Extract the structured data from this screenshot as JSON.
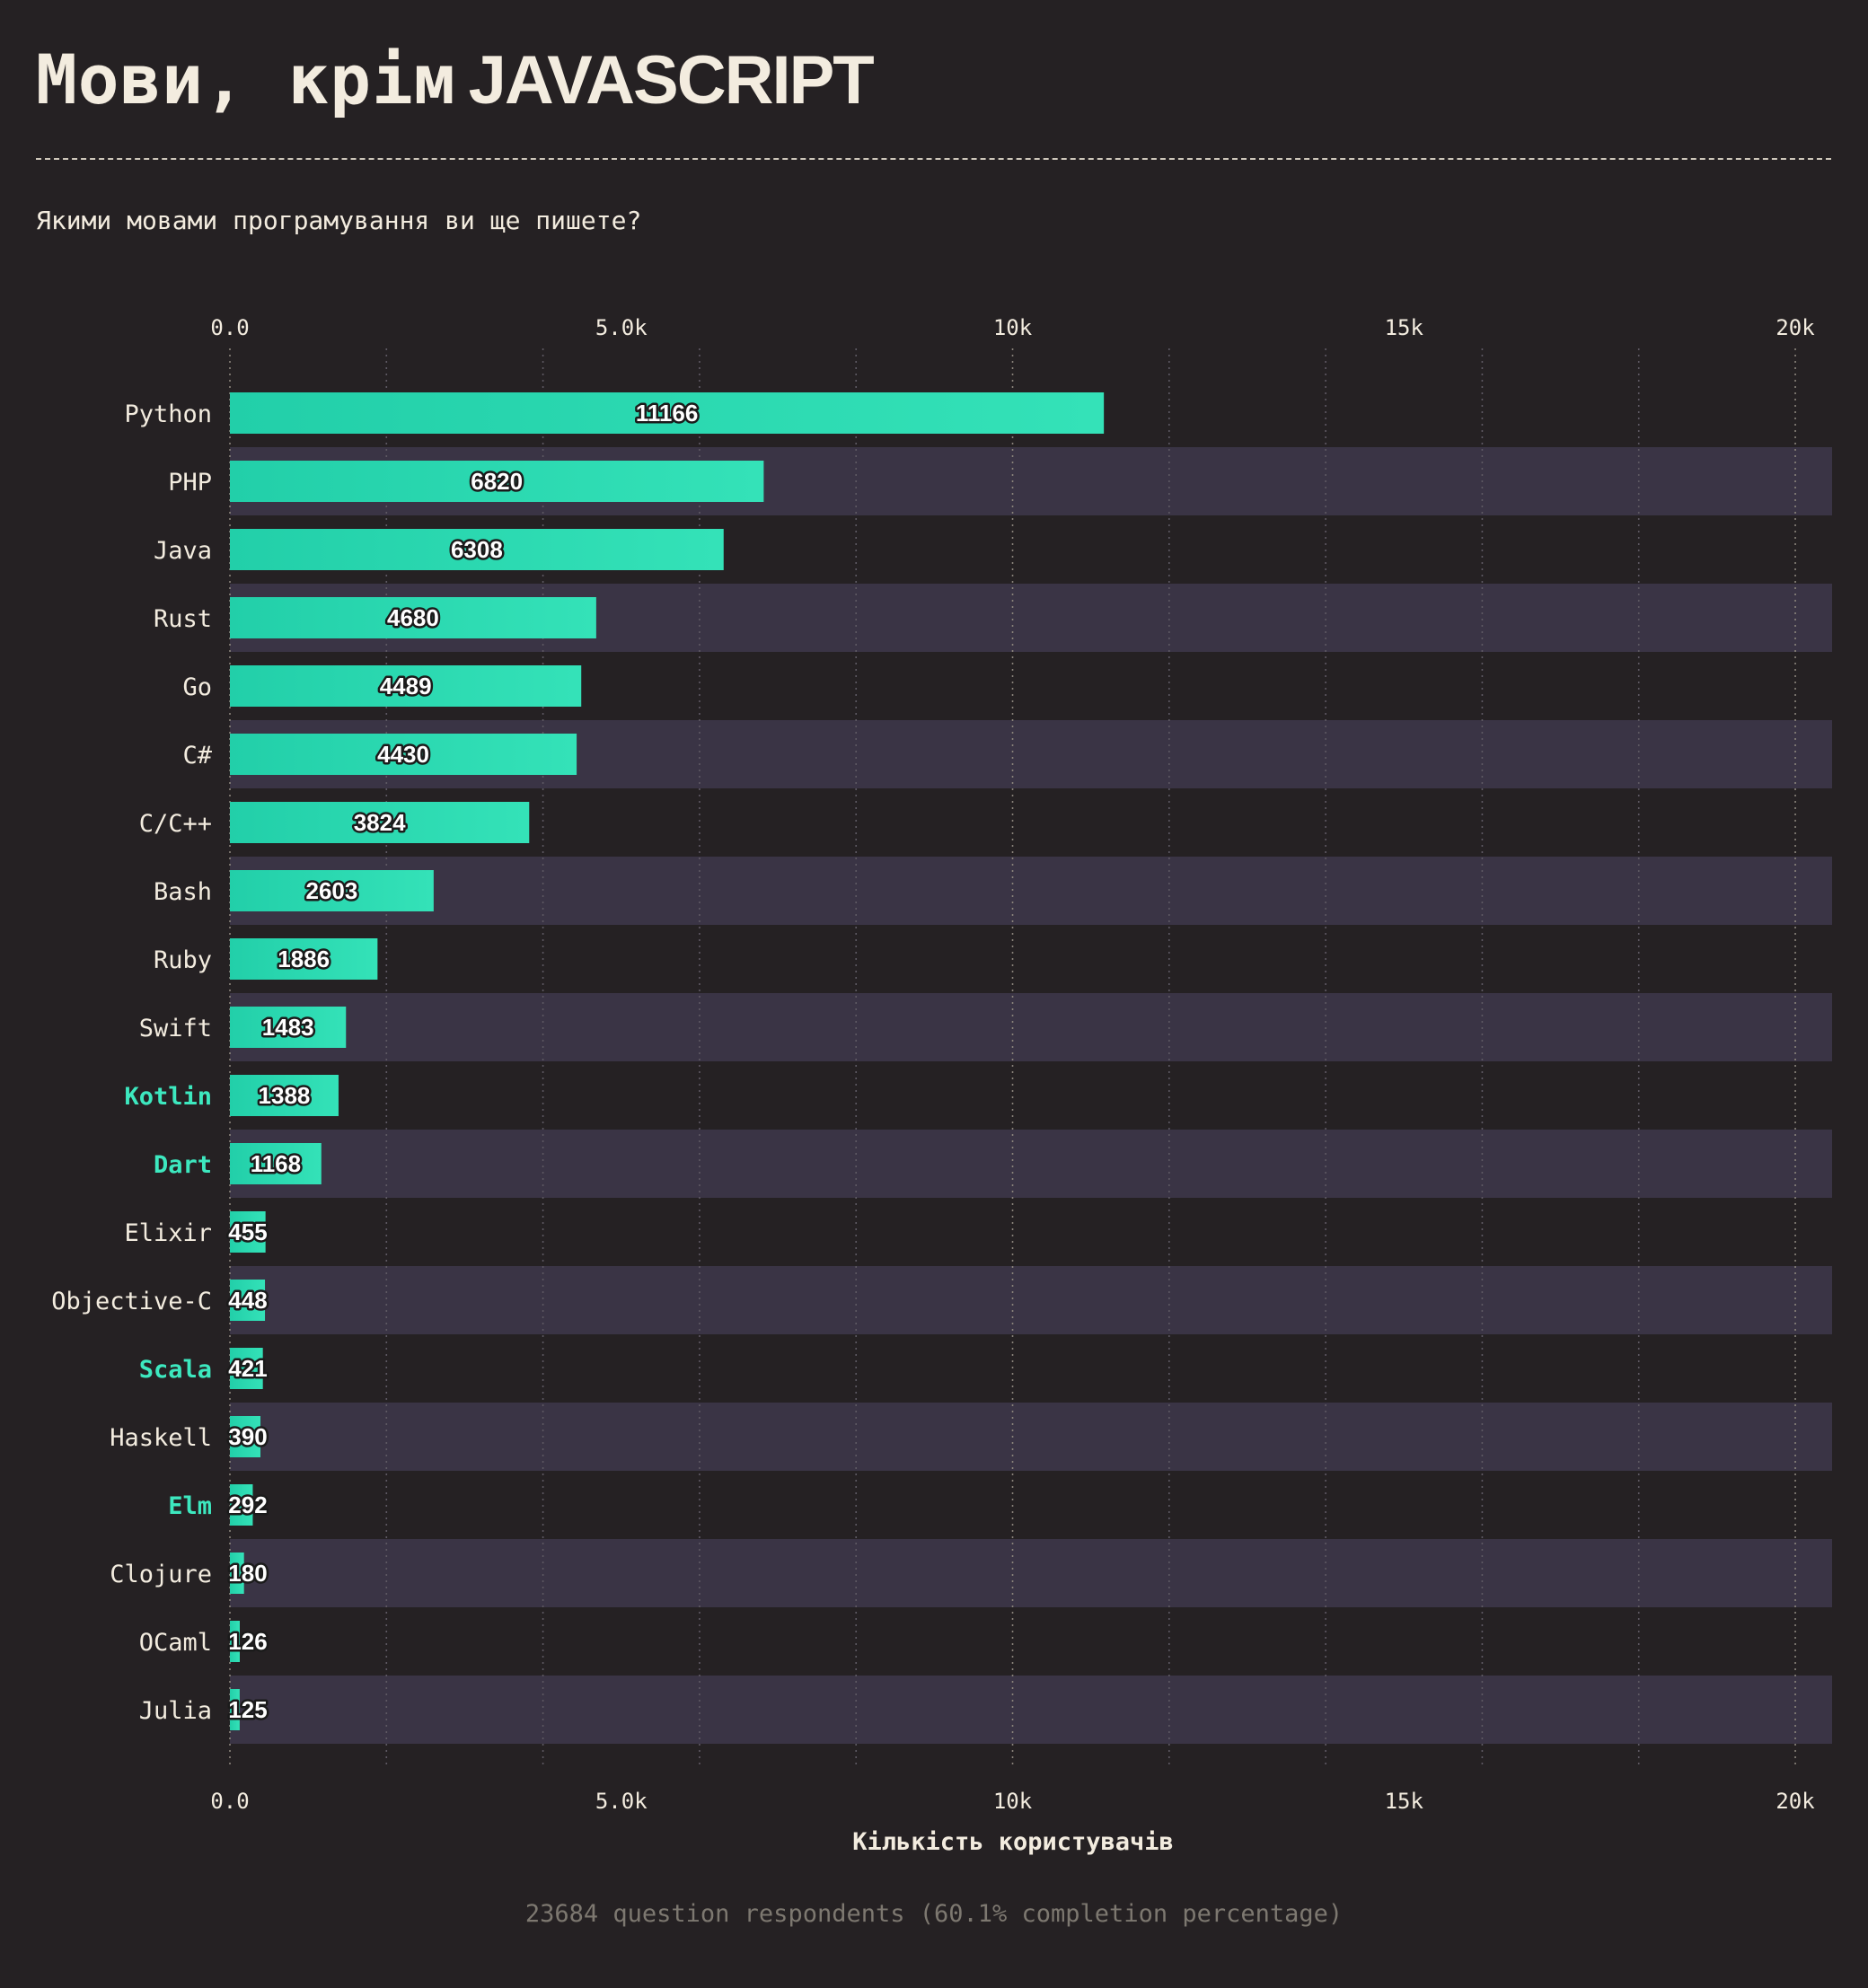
{
  "header": {
    "title_part1": "Мови, крім",
    "title_part2": "JAVASCRIPT",
    "question": "Якими мовами програмування ви ще пишете?"
  },
  "footer": {
    "respondents": "23684 question respondents (60.1% completion percentage)"
  },
  "colors": {
    "background": "#252123",
    "band": "#3a3445",
    "bar": "#2cd9b0",
    "highlight_label": "#3de8bf",
    "text": "#f3ecdf",
    "muted": "#7d7870"
  },
  "chart_data": {
    "type": "bar",
    "orientation": "horizontal",
    "title": "Мови, крім JAVASCRIPT",
    "subtitle": "Якими мовами програмування ви ще пишете?",
    "xlabel": "Кількість користувачів",
    "ylabel": "",
    "xlim": [
      0,
      20470
    ],
    "x_ticks": [
      0,
      5000,
      10000,
      15000,
      20000
    ],
    "x_tick_labels": [
      "0.0",
      "5.0k",
      "10k",
      "15k",
      "20k"
    ],
    "grid": true,
    "categories": [
      "Python",
      "PHP",
      "Java",
      "Rust",
      "Go",
      "C#",
      "C/C++",
      "Bash",
      "Ruby",
      "Swift",
      "Kotlin",
      "Dart",
      "Elixir",
      "Objective-C",
      "Scala",
      "Haskell",
      "Elm",
      "Clojure",
      "OCaml",
      "Julia"
    ],
    "values": [
      11166,
      6820,
      6308,
      4680,
      4489,
      4430,
      3824,
      2603,
      1886,
      1483,
      1388,
      1168,
      455,
      448,
      421,
      390,
      292,
      180,
      126,
      125
    ],
    "highlighted": [
      "Kotlin",
      "Dart",
      "Scala",
      "Elm"
    ]
  }
}
